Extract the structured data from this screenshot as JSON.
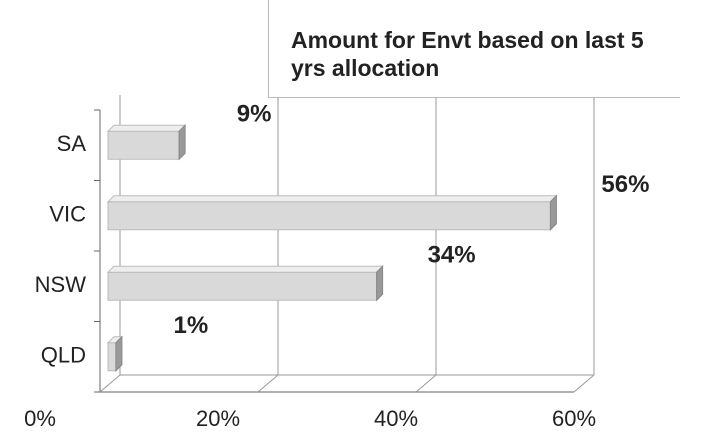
{
  "chart_data": {
    "type": "bar",
    "orientation": "horizontal",
    "title": "Amount for Envt based on last 5 yrs allocation",
    "categories": [
      "SA",
      "VIC",
      "NSW",
      "QLD"
    ],
    "values": [
      9,
      56,
      34,
      1
    ],
    "value_labels": [
      "9%",
      "56%",
      "34%",
      "1%"
    ],
    "color": "#d9d9d9",
    "xlim": [
      0,
      60
    ],
    "xticks": [
      {
        "value": 0,
        "label": "0%"
      },
      {
        "value": 20,
        "label": "20%"
      },
      {
        "value": 40,
        "label": "40%"
      },
      {
        "value": 60,
        "label": "60%"
      }
    ],
    "grid": true
  }
}
